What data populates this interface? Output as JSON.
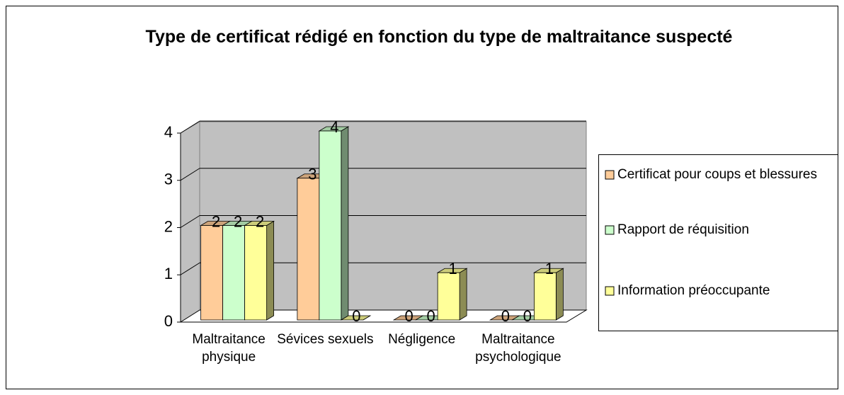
{
  "chart_data": {
    "type": "bar3d",
    "title": "Type de certificat rédigé en fonction du type de maltraitance suspecté",
    "categories": [
      "Maltraitance physique",
      "Sévices sexuels",
      "Négligence",
      "Maltraitance psychologique"
    ],
    "series": [
      {
        "name": "Certificat pour coups et blessures",
        "color": "#ffcc99",
        "values": [
          2,
          3,
          0,
          0
        ]
      },
      {
        "name": "Rapport de réquisition",
        "color": "#ccffcc",
        "values": [
          2,
          4,
          0,
          0
        ]
      },
      {
        "name": "Information préoccupante",
        "color": "#ffff99",
        "values": [
          2,
          0,
          1,
          1
        ]
      }
    ],
    "ylim": [
      0,
      4
    ],
    "yticks": [
      0,
      1,
      2,
      3,
      4
    ],
    "grid": true,
    "legend": "right"
  }
}
